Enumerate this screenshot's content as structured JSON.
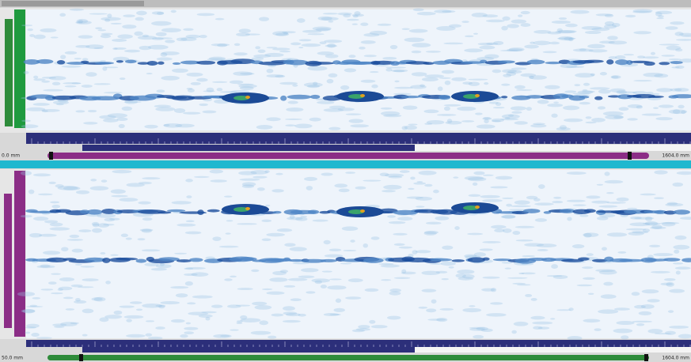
{
  "top_panel": {
    "start_label": "0.0 mm",
    "end_label": "1604.0 mm"
  },
  "bottom_panel": {
    "start_label": "50.0 mm",
    "end_label": "1604.0 mm"
  }
}
